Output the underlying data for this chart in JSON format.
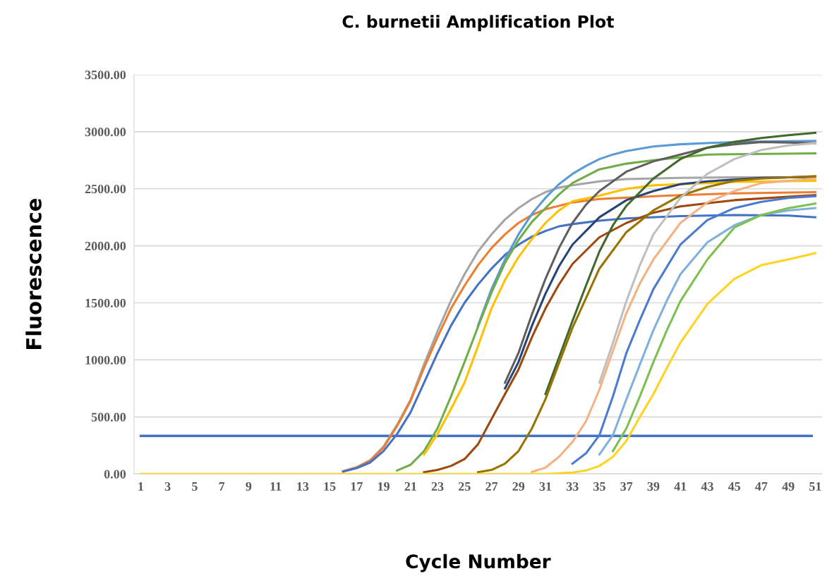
{
  "chart_data": {
    "type": "line",
    "title": "C. burnetii Amplification Plot",
    "xlabel": "Cycle Number",
    "ylabel": "Fluorescence",
    "xlim": [
      0.5,
      51.5
    ],
    "xticks": [
      1,
      3,
      5,
      7,
      9,
      11,
      13,
      15,
      17,
      19,
      21,
      23,
      25,
      27,
      29,
      31,
      33,
      35,
      37,
      39,
      41,
      43,
      45,
      47,
      49,
      51
    ],
    "ylim": [
      0,
      3500
    ],
    "yticks": [
      {
        "value": 0,
        "label": "0.00"
      },
      {
        "value": 500,
        "label": "500.00"
      },
      {
        "value": 1000,
        "label": "1000.00"
      },
      {
        "value": 1500,
        "label": "1500.00"
      },
      {
        "value": 2000,
        "label": "2000.00"
      },
      {
        "value": 2500,
        "label": "2500.00"
      },
      {
        "value": 3000,
        "label": "3000.00"
      },
      {
        "value": 3500,
        "label": "3500.00"
      }
    ],
    "grid": "y",
    "marker": "none",
    "line_style": "solid",
    "ref_lines": [
      {
        "axis": "y",
        "value": 333,
        "color": "#4472c4"
      }
    ],
    "series": [
      {
        "color": "#a5a5a5",
        "x": [
          16,
          17,
          18,
          19,
          20,
          21,
          22,
          23,
          24,
          25,
          26,
          27,
          28,
          29,
          30,
          31,
          32,
          33,
          35,
          37,
          41,
          45,
          51
        ],
        "values": [
          25,
          60,
          120,
          240,
          430,
          650,
          960,
          1250,
          1520,
          1750,
          1950,
          2100,
          2230,
          2330,
          2410,
          2470,
          2510,
          2530,
          2565,
          2585,
          2595,
          2600,
          2600
        ]
      },
      {
        "color": "#ed7d31",
        "x": [
          16,
          17,
          18,
          19,
          20,
          21,
          22,
          23,
          24,
          25,
          26,
          27,
          28,
          29,
          30,
          31,
          33,
          35,
          40,
          45,
          51
        ],
        "values": [
          22,
          55,
          115,
          230,
          420,
          640,
          930,
          1200,
          1450,
          1650,
          1830,
          1980,
          2100,
          2200,
          2270,
          2320,
          2380,
          2410,
          2440,
          2460,
          2470
        ]
      },
      {
        "color": "#4472c4",
        "x": [
          16,
          17,
          18,
          19,
          20,
          21,
          22,
          23,
          24,
          25,
          26,
          27,
          28,
          29,
          30,
          31,
          32,
          33,
          35,
          37,
          41,
          45,
          49,
          51
        ],
        "values": [
          20,
          50,
          100,
          200,
          350,
          540,
          800,
          1060,
          1300,
          1500,
          1660,
          1800,
          1920,
          2010,
          2080,
          2130,
          2170,
          2190,
          2220,
          2240,
          2260,
          2270,
          2265,
          2250
        ]
      },
      {
        "color": "#5b9bd5",
        "x": [
          26,
          27,
          28,
          29,
          30,
          31,
          32,
          33,
          34,
          35,
          36,
          37,
          39,
          41,
          45,
          51
        ],
        "values": [
          1300,
          1620,
          1880,
          2100,
          2280,
          2420,
          2540,
          2630,
          2700,
          2760,
          2800,
          2830,
          2870,
          2890,
          2910,
          2920
        ]
      },
      {
        "color": "#70ad47",
        "x": [
          20,
          21,
          22,
          23,
          24,
          25,
          26,
          27,
          28,
          29,
          30,
          31,
          32,
          33,
          35,
          37,
          39,
          43,
          51
        ],
        "values": [
          30,
          80,
          200,
          400,
          680,
          980,
          1290,
          1590,
          1850,
          2050,
          2210,
          2330,
          2450,
          2550,
          2670,
          2720,
          2750,
          2800,
          2810
        ]
      },
      {
        "color": "#ffc000",
        "x": [
          22,
          23,
          24,
          25,
          26,
          27,
          28,
          29,
          30,
          31,
          32,
          33,
          35,
          37,
          39,
          45,
          51
        ],
        "values": [
          170,
          350,
          570,
          800,
          1120,
          1450,
          1700,
          1900,
          2060,
          2200,
          2310,
          2390,
          2440,
          2500,
          2530,
          2560,
          2570
        ]
      },
      {
        "color": "#5f5f5f",
        "x": [
          28,
          29,
          30,
          31,
          32,
          33,
          34,
          35,
          37,
          39,
          41,
          43,
          45,
          47,
          51
        ],
        "values": [
          800,
          1060,
          1400,
          1710,
          1980,
          2200,
          2360,
          2480,
          2650,
          2740,
          2800,
          2860,
          2890,
          2910,
          2900
        ]
      },
      {
        "color": "#264478",
        "x": [
          28,
          29,
          30,
          31,
          32,
          33,
          35,
          37,
          39,
          41,
          43,
          47,
          51
        ],
        "values": [
          750,
          980,
          1300,
          1580,
          1820,
          2010,
          2250,
          2400,
          2480,
          2540,
          2565,
          2595,
          2605
        ]
      },
      {
        "color": "#9e480e",
        "x": [
          22,
          23,
          24,
          25,
          26,
          27,
          28,
          29,
          30,
          31,
          32,
          33,
          35,
          37,
          39,
          41,
          45,
          51
        ],
        "values": [
          15,
          35,
          70,
          130,
          260,
          480,
          700,
          915,
          1200,
          1450,
          1660,
          1840,
          2075,
          2200,
          2290,
          2345,
          2400,
          2445
        ]
      },
      {
        "color": "#43682b",
        "x": [
          31,
          32,
          33,
          34,
          35,
          36,
          37,
          39,
          41,
          43,
          45,
          47,
          49,
          51
        ],
        "values": [
          700,
          1020,
          1340,
          1650,
          1950,
          2180,
          2350,
          2590,
          2760,
          2860,
          2910,
          2945,
          2970,
          2990
        ]
      },
      {
        "color": "#997300",
        "x": [
          26,
          27,
          28,
          29,
          30,
          31,
          32,
          33,
          35,
          37,
          39,
          41,
          43,
          45,
          47,
          51
        ],
        "values": [
          15,
          35,
          90,
          200,
          400,
          655,
          970,
          1280,
          1800,
          2120,
          2310,
          2440,
          2515,
          2570,
          2590,
          2610
        ]
      },
      {
        "color": "#bfbfbf",
        "x": [
          35,
          36,
          37,
          38,
          39,
          41,
          43,
          45,
          47,
          49,
          51
        ],
        "values": [
          800,
          1150,
          1515,
          1830,
          2100,
          2420,
          2630,
          2760,
          2840,
          2880,
          2900
        ]
      },
      {
        "color": "#f4b183",
        "x": [
          30,
          31,
          32,
          33,
          34,
          35,
          36,
          37,
          38,
          39,
          41,
          43,
          45,
          47,
          51
        ],
        "values": [
          18,
          55,
          150,
          280,
          460,
          740,
          1080,
          1410,
          1670,
          1880,
          2200,
          2380,
          2480,
          2550,
          2590
        ]
      },
      {
        "color": "#4a7bd0",
        "x": [
          33,
          34,
          35,
          36,
          37,
          38,
          39,
          41,
          43,
          45,
          47,
          49,
          51
        ],
        "values": [
          90,
          180,
          340,
          680,
          1060,
          1350,
          1620,
          2010,
          2225,
          2330,
          2385,
          2420,
          2435
        ]
      },
      {
        "color": "#7fb0e0",
        "x": [
          35,
          36,
          37,
          38,
          39,
          40,
          41,
          43,
          45,
          47,
          49,
          51
        ],
        "values": [
          170,
          340,
          655,
          960,
          1260,
          1520,
          1750,
          2030,
          2180,
          2270,
          2310,
          2330
        ]
      },
      {
        "color": "#7cc150",
        "x": [
          36,
          37,
          38,
          39,
          40,
          41,
          43,
          45,
          47,
          49,
          51
        ],
        "values": [
          200,
          400,
          680,
          980,
          1260,
          1515,
          1880,
          2160,
          2270,
          2330,
          2370
        ]
      },
      {
        "color": "#ffd320",
        "x": [
          1,
          31,
          32,
          33,
          34,
          35,
          36,
          37,
          38,
          39,
          40,
          41,
          43,
          45,
          47,
          49,
          51
        ],
        "values": [
          0,
          0,
          5,
          12,
          30,
          70,
          150,
          290,
          500,
          700,
          930,
          1150,
          1490,
          1710,
          1830,
          1880,
          1935
        ]
      }
    ]
  }
}
